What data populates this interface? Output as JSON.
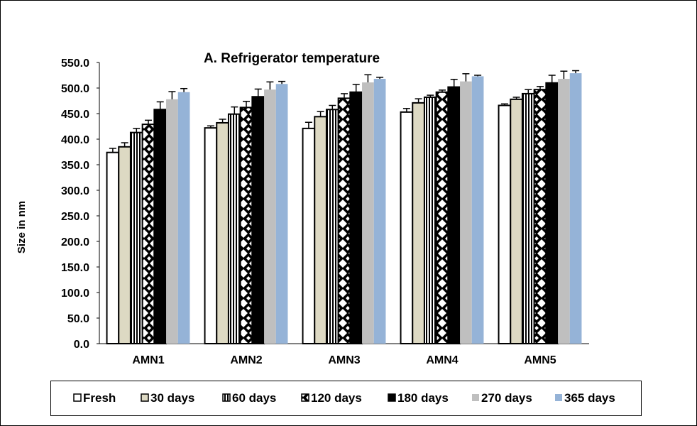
{
  "chart_data": {
    "type": "bar",
    "title": "A. Refrigerator temperature",
    "xlabel": "",
    "ylabel": "Size in nm",
    "ylim": [
      0,
      550
    ],
    "yticks": [
      0,
      50,
      100,
      150,
      200,
      250,
      300,
      350,
      400,
      450,
      500,
      550
    ],
    "ytick_labels": [
      "0.0",
      "50.0",
      "100.0",
      "150.0",
      "200.0",
      "250.0",
      "300.0",
      "350.0",
      "400.0",
      "450.0",
      "500.0",
      "550.0"
    ],
    "grid": false,
    "legend_position": "bottom",
    "categories": [
      "AMN1",
      "AMN2",
      "AMN3",
      "AMN4",
      "AMN5"
    ],
    "series": [
      {
        "name": "Fresh",
        "fill": "#ffffff",
        "pattern": "none",
        "values": [
          374,
          422,
          421,
          453,
          466
        ],
        "errors": [
          8,
          4,
          12,
          7,
          3
        ]
      },
      {
        "name": "30 days",
        "fill": "#ddd9c3",
        "pattern": "none",
        "values": [
          385,
          432,
          444,
          471,
          478
        ],
        "errors": [
          8,
          7,
          10,
          8,
          4
        ]
      },
      {
        "name": "60 days",
        "fill": "#ffffff",
        "pattern": "vertical",
        "values": [
          413,
          449,
          458,
          482,
          489
        ],
        "errors": [
          8,
          14,
          8,
          4,
          8
        ]
      },
      {
        "name": "120 days",
        "fill": "#ffffff",
        "pattern": "diamond",
        "values": [
          429,
          462,
          480,
          492,
          497
        ],
        "errors": [
          8,
          12,
          9,
          4,
          6
        ]
      },
      {
        "name": "180 days",
        "fill": "#000000",
        "pattern": "none",
        "values": [
          458,
          483,
          492,
          502,
          510
        ],
        "errors": [
          15,
          15,
          15,
          15,
          15
        ]
      },
      {
        "name": "270 days",
        "fill": "#bfbfbf",
        "pattern": "none",
        "values": [
          478,
          497,
          511,
          513,
          518
        ],
        "errors": [
          15,
          15,
          15,
          15,
          15
        ]
      },
      {
        "name": "365 days",
        "fill": "#95b3d7",
        "pattern": "none",
        "values": [
          492,
          508,
          518,
          523,
          529
        ],
        "errors": [
          7,
          5,
          3,
          2,
          5
        ]
      }
    ]
  }
}
